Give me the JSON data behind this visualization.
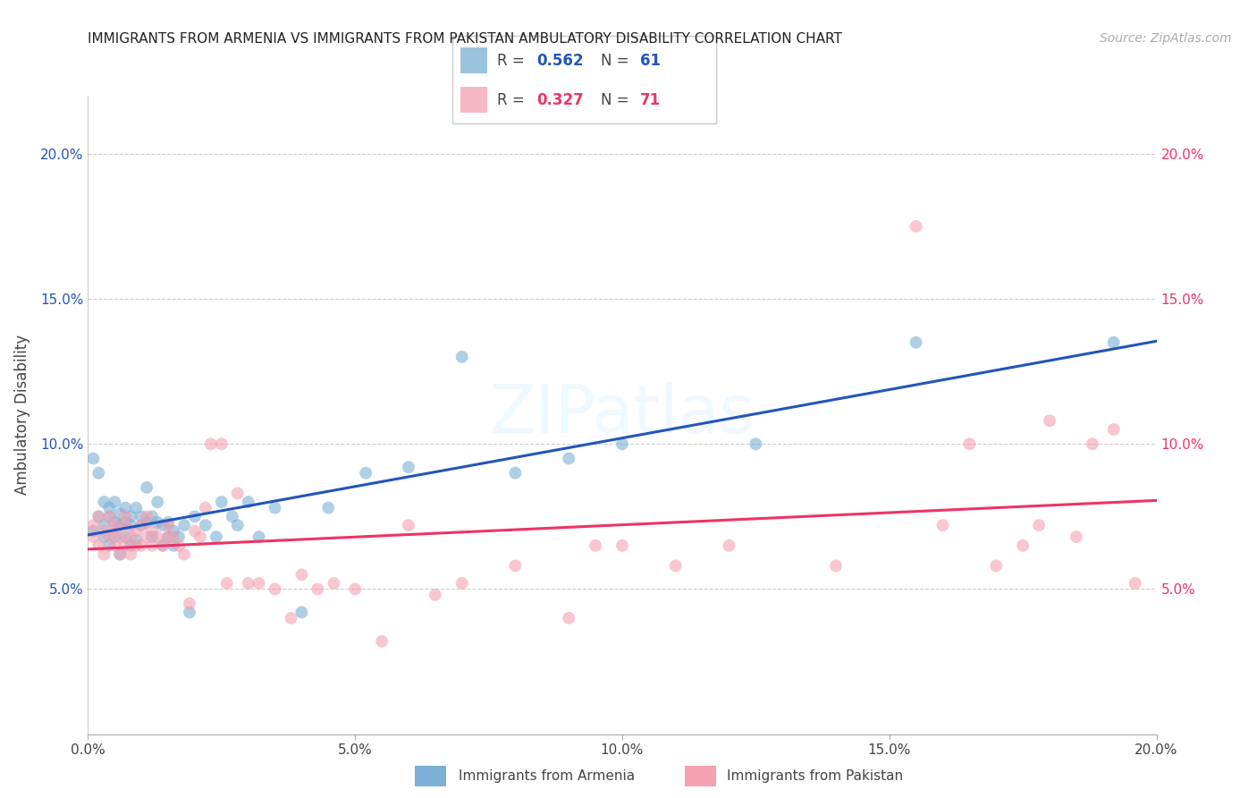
{
  "title": "IMMIGRANTS FROM ARMENIA VS IMMIGRANTS FROM PAKISTAN AMBULATORY DISABILITY CORRELATION CHART",
  "source": "Source: ZipAtlas.com",
  "ylabel": "Ambulatory Disability",
  "armenia_color": "#7bafd4",
  "pakistan_color": "#f4a0b0",
  "trendline_armenia": "#2255bb",
  "trendline_pakistan": "#ee3366",
  "xmin": 0.0,
  "xmax": 0.2,
  "ymin": 0.0,
  "ymax": 0.22,
  "armenia_x": [
    0.001,
    0.001,
    0.002,
    0.002,
    0.003,
    0.003,
    0.003,
    0.004,
    0.004,
    0.004,
    0.005,
    0.005,
    0.005,
    0.006,
    0.006,
    0.006,
    0.007,
    0.007,
    0.007,
    0.008,
    0.008,
    0.008,
    0.009,
    0.009,
    0.01,
    0.01,
    0.011,
    0.011,
    0.012,
    0.012,
    0.013,
    0.013,
    0.014,
    0.014,
    0.015,
    0.015,
    0.016,
    0.016,
    0.017,
    0.018,
    0.019,
    0.02,
    0.022,
    0.024,
    0.025,
    0.027,
    0.028,
    0.03,
    0.032,
    0.035,
    0.04,
    0.045,
    0.052,
    0.06,
    0.07,
    0.08,
    0.09,
    0.1,
    0.125,
    0.155,
    0.192
  ],
  "armenia_y": [
    0.095,
    0.07,
    0.09,
    0.075,
    0.068,
    0.08,
    0.072,
    0.075,
    0.078,
    0.065,
    0.073,
    0.068,
    0.08,
    0.072,
    0.062,
    0.076,
    0.068,
    0.073,
    0.078,
    0.065,
    0.075,
    0.072,
    0.067,
    0.078,
    0.075,
    0.072,
    0.073,
    0.085,
    0.075,
    0.068,
    0.073,
    0.08,
    0.072,
    0.065,
    0.073,
    0.068,
    0.07,
    0.065,
    0.068,
    0.072,
    0.042,
    0.075,
    0.072,
    0.068,
    0.08,
    0.075,
    0.072,
    0.08,
    0.068,
    0.078,
    0.042,
    0.078,
    0.09,
    0.092,
    0.13,
    0.09,
    0.095,
    0.1,
    0.1,
    0.135,
    0.135
  ],
  "pakistan_x": [
    0.001,
    0.001,
    0.002,
    0.002,
    0.003,
    0.003,
    0.004,
    0.004,
    0.005,
    0.005,
    0.005,
    0.006,
    0.006,
    0.007,
    0.007,
    0.007,
    0.008,
    0.008,
    0.009,
    0.009,
    0.01,
    0.01,
    0.011,
    0.011,
    0.012,
    0.012,
    0.013,
    0.014,
    0.015,
    0.015,
    0.016,
    0.017,
    0.018,
    0.019,
    0.02,
    0.021,
    0.022,
    0.023,
    0.025,
    0.026,
    0.028,
    0.03,
    0.032,
    0.035,
    0.038,
    0.04,
    0.043,
    0.046,
    0.05,
    0.055,
    0.06,
    0.065,
    0.07,
    0.08,
    0.09,
    0.095,
    0.1,
    0.11,
    0.12,
    0.14,
    0.155,
    0.16,
    0.165,
    0.17,
    0.175,
    0.178,
    0.18,
    0.185,
    0.188,
    0.192,
    0.196
  ],
  "pakistan_y": [
    0.072,
    0.068,
    0.065,
    0.075,
    0.062,
    0.07,
    0.068,
    0.075,
    0.065,
    0.07,
    0.072,
    0.062,
    0.068,
    0.065,
    0.072,
    0.075,
    0.062,
    0.068,
    0.065,
    0.07,
    0.065,
    0.072,
    0.068,
    0.075,
    0.065,
    0.07,
    0.068,
    0.065,
    0.068,
    0.072,
    0.068,
    0.065,
    0.062,
    0.045,
    0.07,
    0.068,
    0.078,
    0.1,
    0.1,
    0.052,
    0.083,
    0.052,
    0.052,
    0.05,
    0.04,
    0.055,
    0.05,
    0.052,
    0.05,
    0.032,
    0.072,
    0.048,
    0.052,
    0.058,
    0.04,
    0.065,
    0.065,
    0.058,
    0.065,
    0.058,
    0.175,
    0.072,
    0.1,
    0.058,
    0.065,
    0.072,
    0.108,
    0.068,
    0.1,
    0.105,
    0.052
  ]
}
